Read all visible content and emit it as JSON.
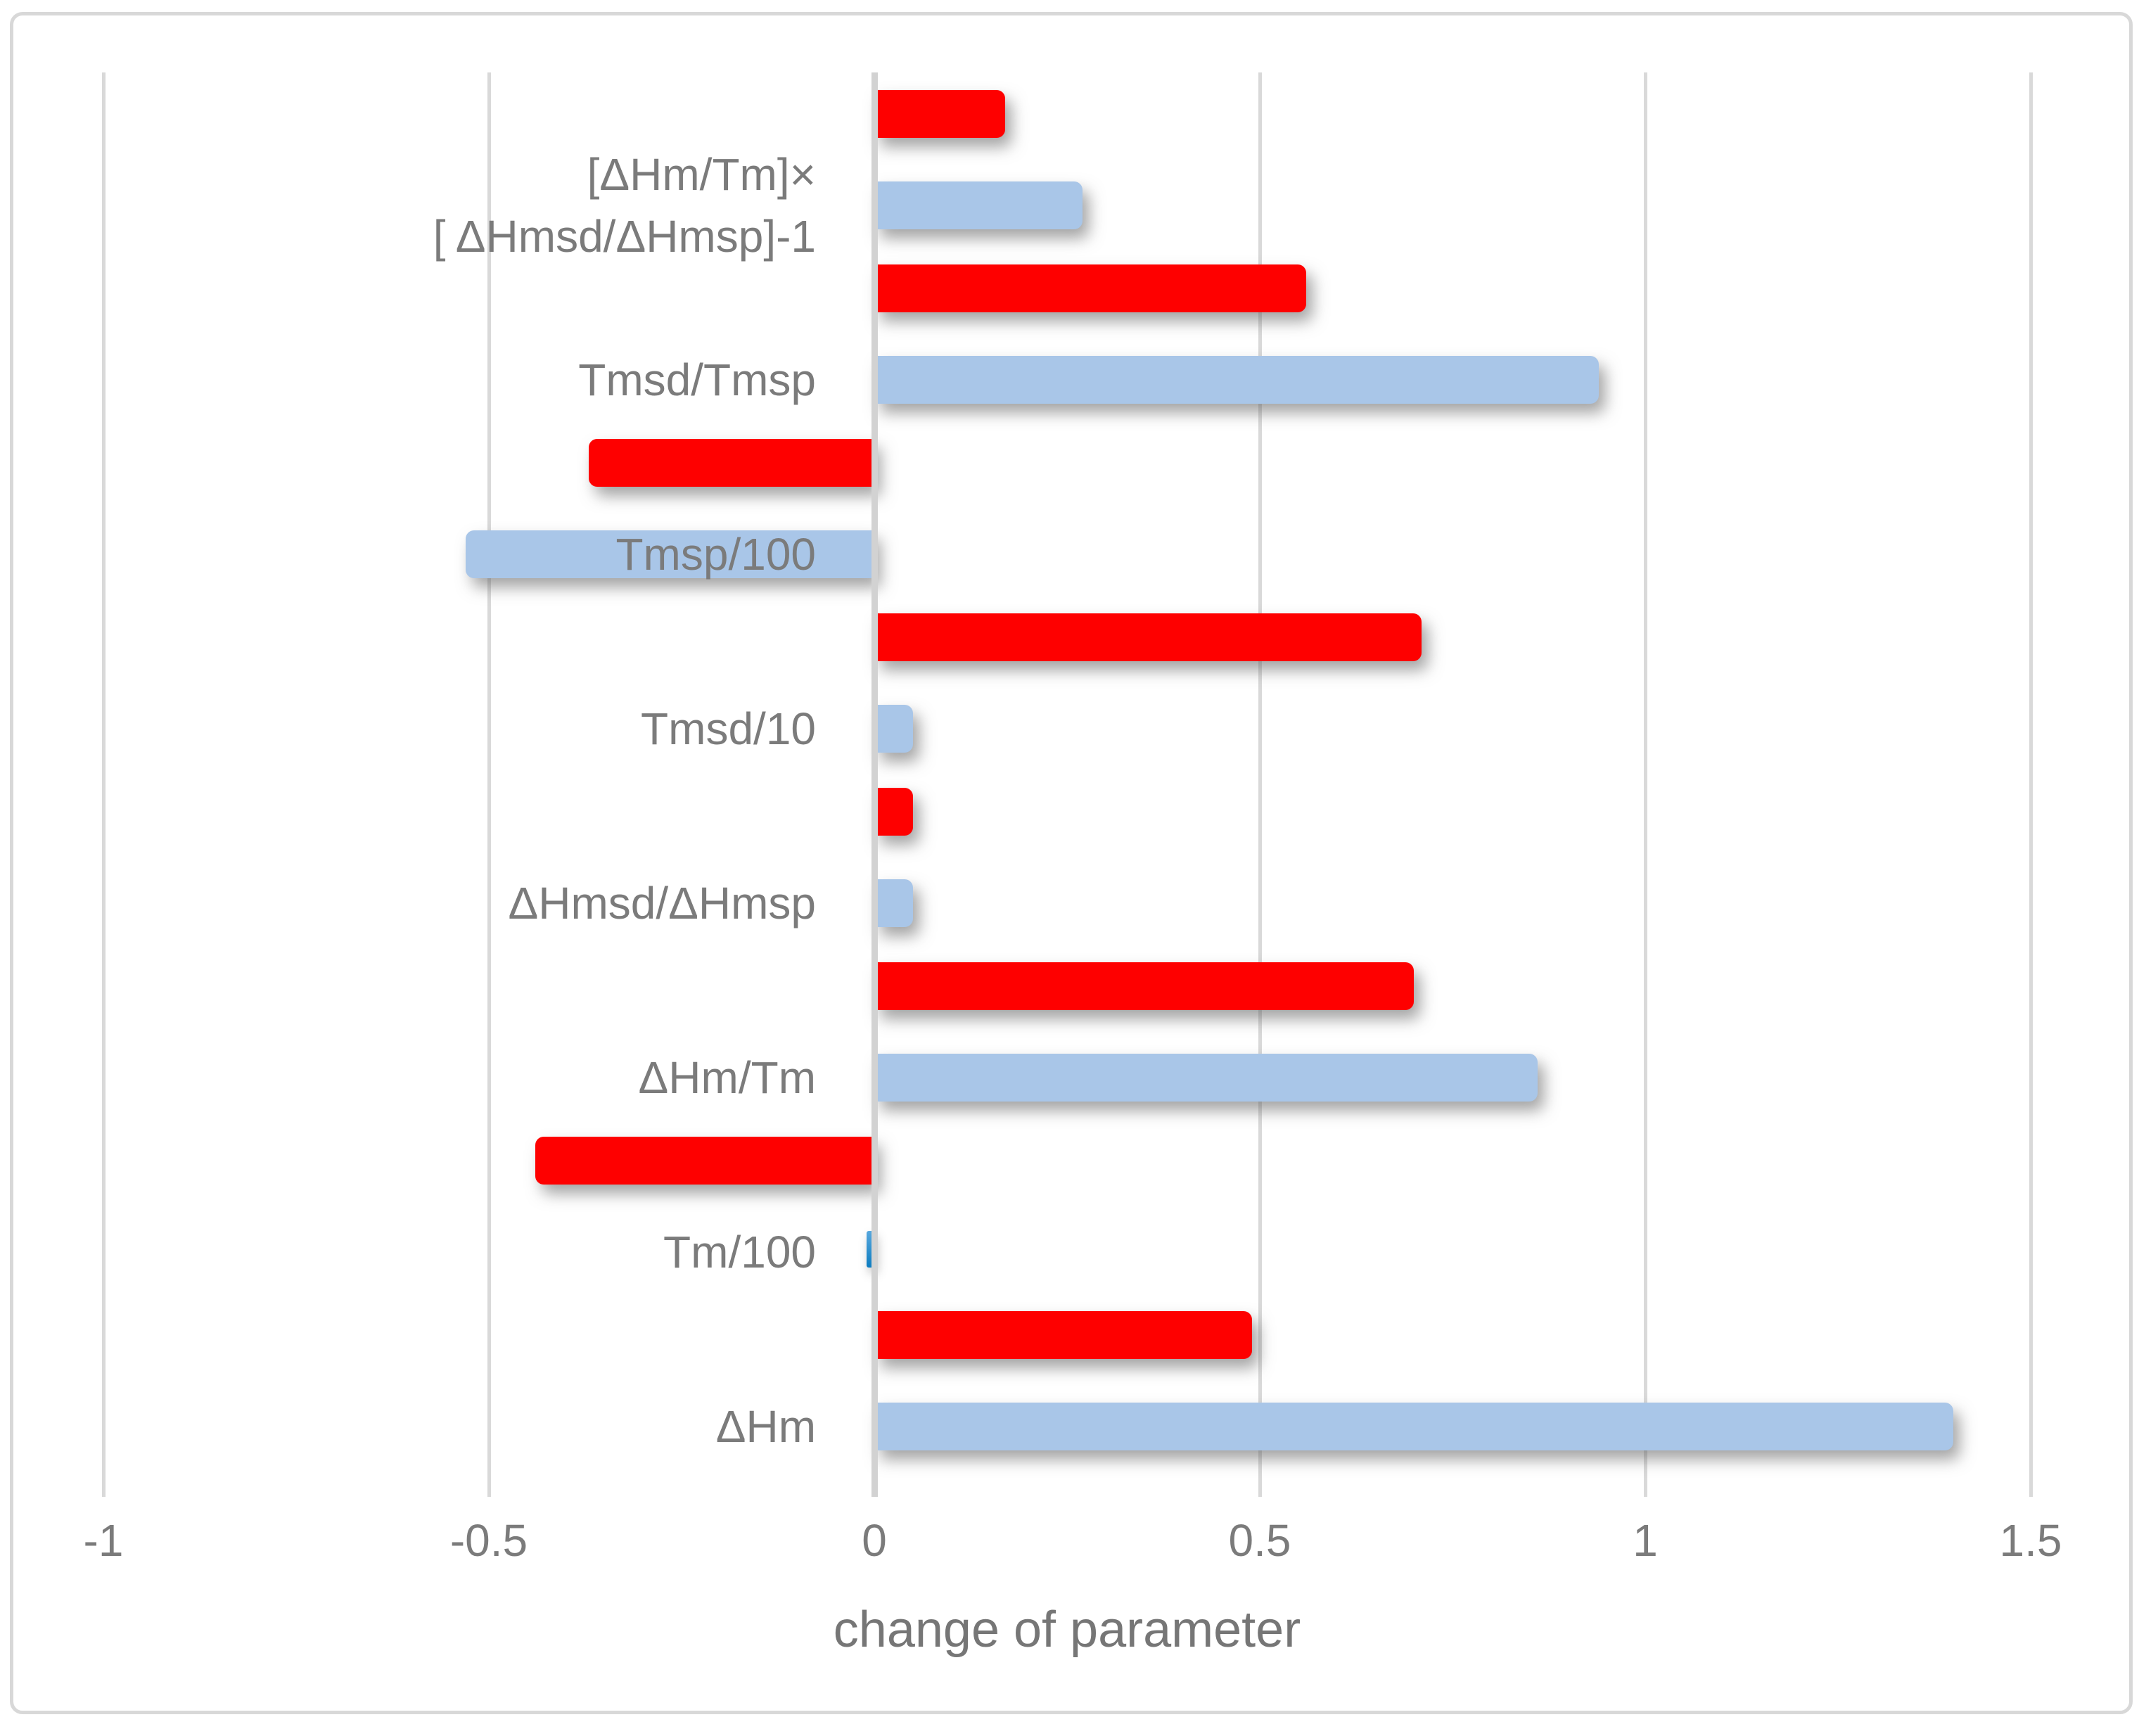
{
  "figure": {
    "xlabel": "change of parameter",
    "x_tick_labels": [
      "-1",
      "-0.5",
      "0",
      "0.5",
      "1",
      "1.5"
    ],
    "colors": {
      "red_series": "#FE0000",
      "blue_series": "#A9C6E8",
      "tiny_blue_bar": "#1488CC",
      "gridline": "#D9D9D9",
      "zero_axis_line": "#D2D2D2",
      "label_text": "#7B7B7B",
      "chart_border": "#D8D8D8"
    }
  },
  "chart_data": {
    "type": "bar",
    "orientation": "horizontal",
    "title": "",
    "xlabel": "change of parameter",
    "xlim": [
      -1,
      1.5
    ],
    "x_ticks": [
      -1,
      -0.5,
      0,
      0.5,
      1,
      1.5
    ],
    "grid": true,
    "legend": "none",
    "categories_top_to_bottom": [
      {
        "label": "[ΔHm/Tm]×[ ΔHmsd/ΔHmsp]-1",
        "label_lines": [
          "[ΔHm/Tm]×",
          "[ ΔHmsd/ΔHmsp]-1"
        ]
      },
      {
        "label": "Tmsd/Tmsp",
        "label_lines": [
          "Tmsd/Tmsp"
        ]
      },
      {
        "label": "Tmsp/100",
        "label_lines": [
          "Tmsp/100"
        ]
      },
      {
        "label": "Tmsd/10",
        "label_lines": [
          "Tmsd/10"
        ]
      },
      {
        "label": "ΔHmsd/ΔHmsp",
        "label_lines": [
          "ΔHmsd/ΔHmsp"
        ]
      },
      {
        "label": "ΔHm/Tm",
        "label_lines": [
          "ΔHm/Tm"
        ]
      },
      {
        "label": "Tm/100",
        "label_lines": [
          "Tm/100"
        ]
      },
      {
        "label": "ΔHm",
        "label_lines": [
          "ΔHm"
        ]
      }
    ],
    "series": [
      {
        "name": "red (upper bar of each pair)",
        "color": "#FE0000",
        "values_top_to_bottom": [
          0.17,
          0.56,
          -0.37,
          0.71,
          0.05,
          0.7,
          -0.44,
          0.49
        ]
      },
      {
        "name": "blue (lower bar of each pair)",
        "color": "#A9C6E8",
        "values_top_to_bottom": [
          0.27,
          0.94,
          -0.53,
          0.05,
          0.05,
          0.86,
          -0.01,
          1.4
        ]
      }
    ]
  }
}
